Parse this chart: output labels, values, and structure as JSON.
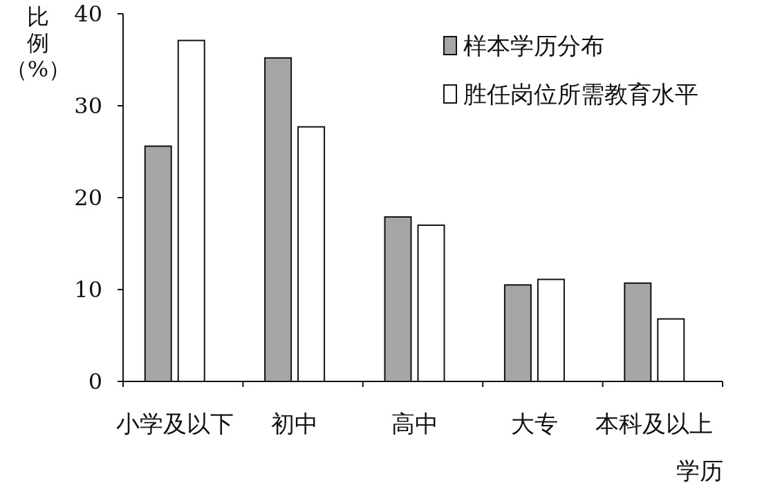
{
  "chart_data": {
    "type": "bar",
    "ylabel": "比例（%）",
    "xlabel": "学历",
    "categories": [
      "小学及以下",
      "初中",
      "高中",
      "大专",
      "本科及以上"
    ],
    "series": [
      {
        "name": "样本学历分布",
        "color": "#a6a6a6",
        "values": [
          25.6,
          35.2,
          17.9,
          10.5,
          10.7
        ]
      },
      {
        "name": "胜任岗位所需教育水平",
        "color": "#ffffff",
        "values": [
          37.1,
          27.7,
          17.0,
          11.1,
          6.8
        ]
      }
    ],
    "ylim": [
      0,
      40
    ],
    "yticks": [
      0,
      10,
      20,
      30,
      40
    ],
    "grid": false,
    "legend": "top right"
  }
}
